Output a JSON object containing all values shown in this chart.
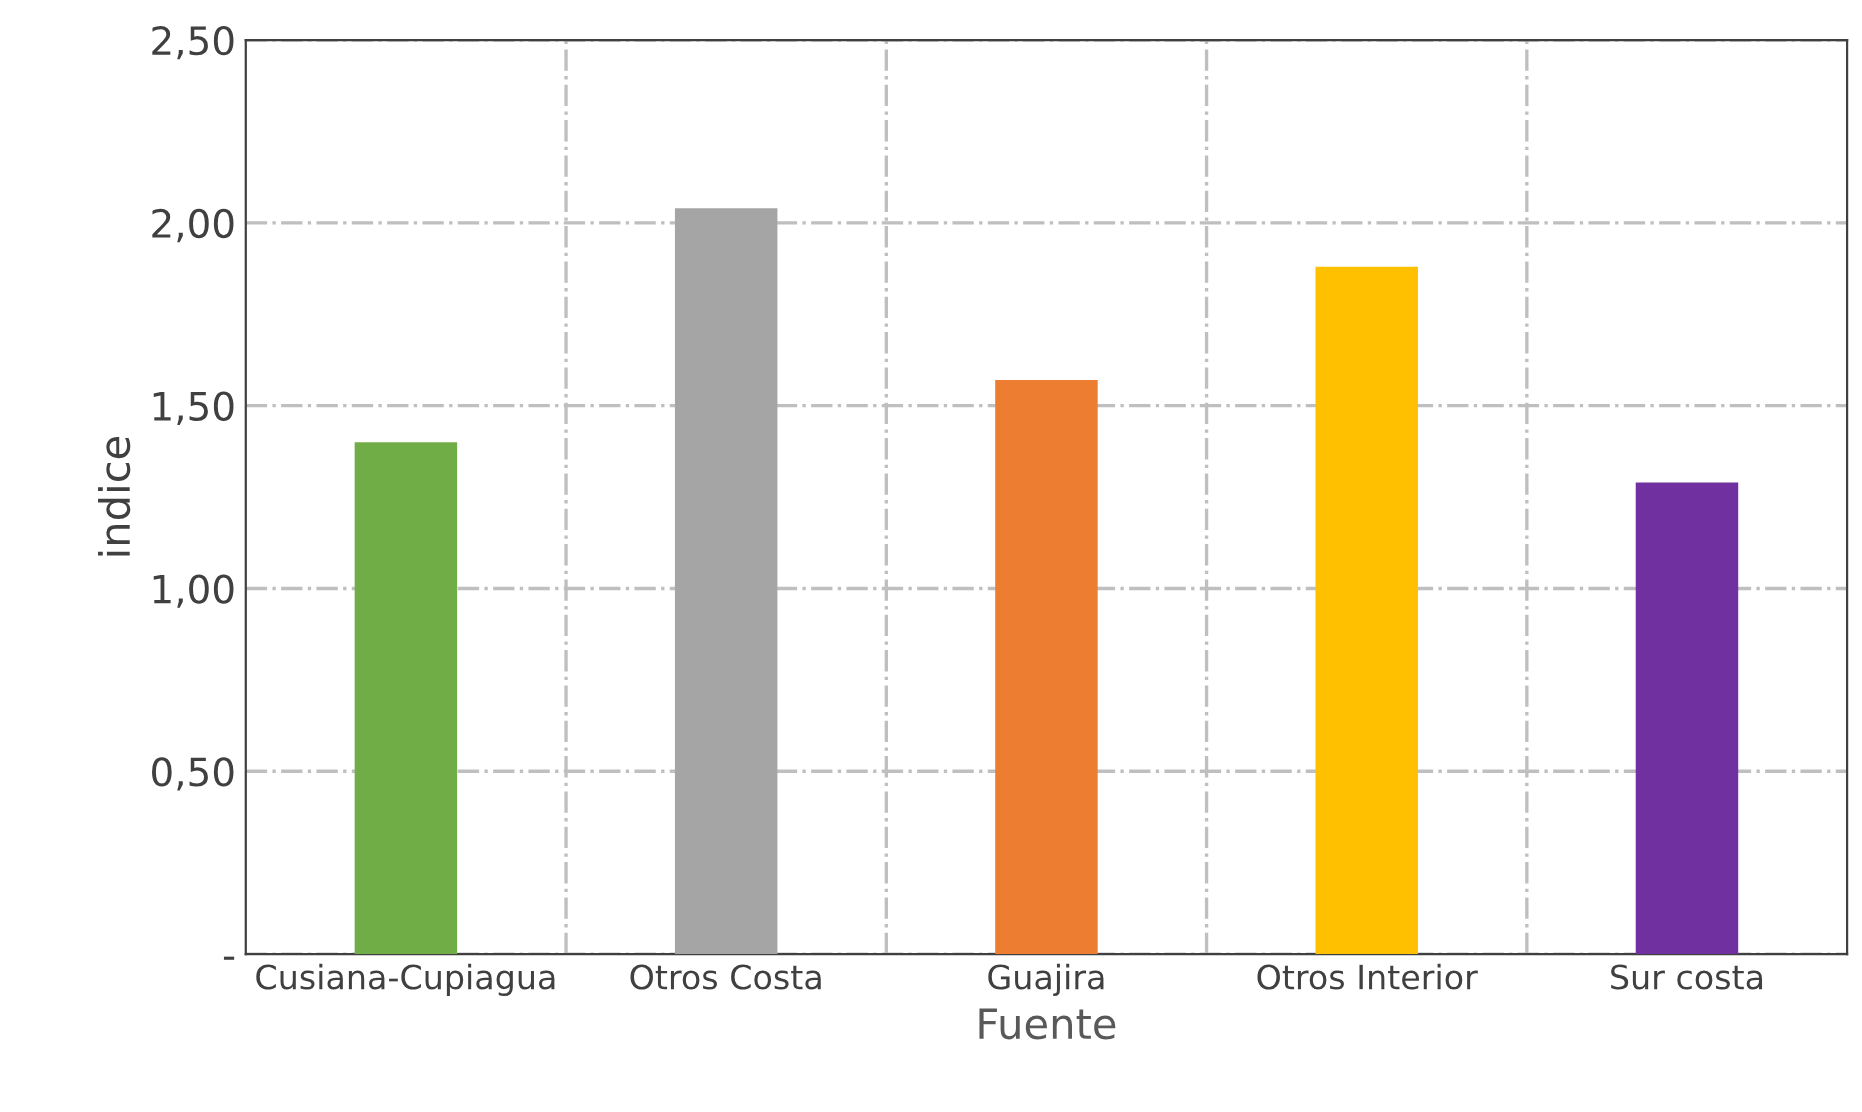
{
  "chart_data": {
    "type": "bar",
    "xlabel": "Fuente",
    "ylabel": "indice",
    "categories": [
      "Cusiana-Cupiagua",
      "Otros Costa",
      "Guajira",
      "Otros Interior",
      "Sur costa"
    ],
    "values": [
      1.4,
      2.04,
      1.57,
      1.88,
      1.29
    ],
    "colors": [
      "#70ad47",
      "#a5a5a5",
      "#ed7d31",
      "#ffc000",
      "#7030a0"
    ],
    "ylim": [
      0,
      2.5
    ],
    "yticks": [
      {
        "value": 0,
        "label": "-"
      },
      {
        "value": 0.5,
        "label": "0,50"
      },
      {
        "value": 1.0,
        "label": "1,00"
      },
      {
        "value": 1.5,
        "label": "1,50"
      },
      {
        "value": 2.0,
        "label": "2,00"
      },
      {
        "value": 2.5,
        "label": "2,50"
      }
    ],
    "grid": true,
    "line_style": "dashdot"
  }
}
